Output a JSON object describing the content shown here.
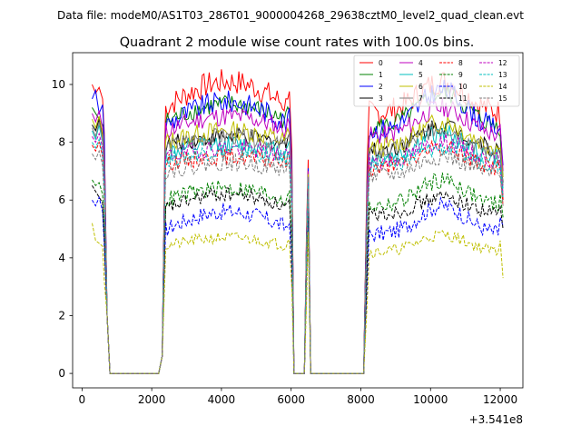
{
  "chart_data": {
    "type": "line",
    "suptitle": "Data file: modeM0/AS1T03_286T01_9000004268_29638cztM0_level2_quad_clean.evt",
    "title": "Quadrant 2 module wise count rates with 100.0s bins.",
    "xlabel": "",
    "ylabel": "",
    "x_offset_label": "+3.541e8",
    "xlim": [
      -270,
      12650
    ],
    "ylim": [
      -0.5,
      11.1
    ],
    "x_ticks": [
      0,
      2000,
      4000,
      6000,
      8000,
      10000,
      12000
    ],
    "x_tick_labels": [
      "0",
      "2000",
      "4000",
      "6000",
      "8000",
      "10000",
      "12000"
    ],
    "y_ticks": [
      0,
      2,
      4,
      6,
      8,
      10
    ],
    "y_tick_labels": [
      "0",
      "2",
      "4",
      "6",
      "8",
      "10"
    ],
    "legend_location": "upper right",
    "segments": [
      [
        290,
        720
      ],
      [
        2400,
        5960
      ],
      [
        6490,
        6490
      ],
      [
        8240,
        12050
      ]
    ],
    "series": [
      {
        "name": "0",
        "color": "#ff0000",
        "dash": "solid",
        "lead": [
          10.0,
          9.7,
          9.9,
          9.5
        ],
        "level": 9.2,
        "ramp": 0.9,
        "noise": 0.45,
        "spike": 7.4,
        "tail": [
          8.4,
          6.0
        ],
        "peak": 10.3
      },
      {
        "name": "1",
        "color": "#008000",
        "dash": "solid",
        "lead": [
          9.2,
          9.0,
          8.8,
          8.6
        ],
        "level": 8.7,
        "ramp": 0.6,
        "noise": 0.35,
        "spike": 7.0,
        "tail": [
          8.2,
          6.8
        ],
        "peak": 9.9
      },
      {
        "name": "2",
        "color": "#0000ff",
        "dash": "solid",
        "lead": [
          9.5,
          9.8,
          9.0,
          9.3
        ],
        "level": 8.6,
        "ramp": 0.8,
        "noise": 0.4,
        "spike": 7.1,
        "tail": [
          8.5,
          7.2
        ],
        "peak": 10.0
      },
      {
        "name": "3",
        "color": "#000000",
        "dash": "solid",
        "lead": [
          8.6,
          8.4,
          8.8,
          8.2
        ],
        "level": 7.9,
        "ramp": 0.3,
        "noise": 0.3,
        "spike": 6.9,
        "tail": [
          7.6,
          6.6
        ],
        "peak": 8.8
      },
      {
        "name": "4",
        "color": "#bf00bf",
        "dash": "solid",
        "lead": [
          9.0,
          8.7,
          9.1,
          8.5
        ],
        "level": 8.4,
        "ramp": 0.5,
        "noise": 0.35,
        "spike": 7.0,
        "tail": [
          8.6,
          7.0
        ],
        "peak": 9.4
      },
      {
        "name": "5",
        "color": "#00bfbf",
        "dash": "solid",
        "lead": [
          8.4,
          8.1,
          8.6,
          8.0
        ],
        "level": 7.6,
        "ramp": 0.3,
        "noise": 0.35,
        "spike": 6.8,
        "tail": [
          7.4,
          6.4
        ],
        "peak": 8.5
      },
      {
        "name": "6",
        "color": "#bfbf00",
        "dash": "solid",
        "lead": [
          8.8,
          8.5,
          8.9,
          8.3
        ],
        "level": 8.0,
        "ramp": 0.4,
        "noise": 0.35,
        "spike": 6.9,
        "tail": [
          7.8,
          6.8
        ],
        "peak": 8.9
      },
      {
        "name": "7",
        "color": "#808080",
        "dash": "solid",
        "lead": [
          8.5,
          8.2,
          8.7,
          8.1
        ],
        "level": 7.8,
        "ramp": 0.4,
        "noise": 0.3,
        "spike": 6.8,
        "tail": [
          7.7,
          6.5
        ],
        "peak": 8.7
      },
      {
        "name": "8",
        "color": "#ff0000",
        "dash": "dashed",
        "lead": [
          7.9,
          7.7,
          8.0,
          7.5
        ],
        "level": 7.3,
        "ramp": 0.2,
        "noise": 0.3,
        "spike": 6.5,
        "tail": [
          7.0,
          5.8
        ],
        "peak": 8.0
      },
      {
        "name": "9",
        "color": "#008000",
        "dash": "dashed",
        "lead": [
          6.7,
          6.5,
          6.6,
          6.2
        ],
        "level": 6.0,
        "ramp": 0.4,
        "noise": 0.3,
        "spike": 6.0,
        "tail": [
          6.2,
          5.4
        ],
        "peak": 6.9
      },
      {
        "name": "10",
        "color": "#0000ff",
        "dash": "dashed",
        "lead": [
          6.0,
          5.8,
          6.1,
          5.6
        ],
        "level": 5.0,
        "ramp": 0.6,
        "noise": 0.3,
        "spike": 5.5,
        "tail": [
          5.4,
          5.1
        ],
        "peak": 6.0
      },
      {
        "name": "11",
        "color": "#000000",
        "dash": "dashed",
        "lead": [
          6.5,
          6.3,
          6.1,
          5.9
        ],
        "level": 5.7,
        "ramp": 0.5,
        "noise": 0.25,
        "spike": 6.0,
        "tail": [
          5.8,
          5.0
        ],
        "peak": 6.3
      },
      {
        "name": "12",
        "color": "#bf00bf",
        "dash": "dashed",
        "lead": [
          8.2,
          8.0,
          8.3,
          7.8
        ],
        "level": 7.5,
        "ramp": 0.3,
        "noise": 0.3,
        "spike": 6.6,
        "tail": [
          7.2,
          6.2
        ],
        "peak": 8.2
      },
      {
        "name": "13",
        "color": "#00bfbf",
        "dash": "dashed",
        "lead": [
          8.0,
          7.8,
          8.1,
          7.6
        ],
        "level": 7.4,
        "ramp": 0.3,
        "noise": 0.3,
        "spike": 6.6,
        "tail": [
          7.1,
          6.1
        ],
        "peak": 8.0
      },
      {
        "name": "14",
        "color": "#bfbf00",
        "dash": "dashed",
        "lead": [
          5.2,
          4.6,
          4.5,
          4.4
        ],
        "level": 4.4,
        "ramp": 0.3,
        "noise": 0.2,
        "spike": 4.9,
        "tail": [
          4.6,
          3.3
        ],
        "peak": 5.0
      },
      {
        "name": "15",
        "color": "#808080",
        "dash": "dashed",
        "lead": [
          7.6,
          7.4,
          7.7,
          7.2
        ],
        "level": 7.0,
        "ramp": 0.3,
        "noise": 0.3,
        "spike": 6.4,
        "tail": [
          6.8,
          5.8
        ],
        "peak": 7.7
      }
    ]
  }
}
